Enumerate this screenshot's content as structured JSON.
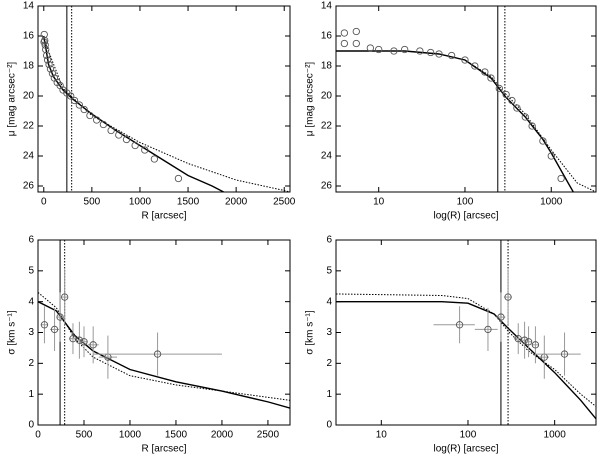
{
  "chart_data": [
    {
      "type": "scatter",
      "xlabel": "R [arcsec]",
      "ylabel": "μ [mag arcsec⁻²]",
      "xlim": [
        -60,
        2560
      ],
      "ylim": [
        26.4,
        14
      ],
      "xticks": [
        0,
        500,
        1000,
        1500,
        2000,
        2500
      ],
      "yticks": [
        14,
        16,
        18,
        20,
        22,
        24,
        26
      ],
      "log_x": false,
      "points": {
        "x": [
          3,
          5,
          10,
          15,
          20,
          30,
          40,
          55,
          70,
          90,
          110,
          140,
          170,
          200,
          240,
          280,
          320,
          370,
          420,
          480,
          550,
          620,
          700,
          780,
          860,
          950,
          1050,
          1150,
          1400
        ],
        "y": [
          16.4,
          15.9,
          16.3,
          16.6,
          16.9,
          17.3,
          17.6,
          17.9,
          18.2,
          18.5,
          18.8,
          19.1,
          19.3,
          19.6,
          19.8,
          20.0,
          20.3,
          20.6,
          20.9,
          21.3,
          21.6,
          21.9,
          22.3,
          22.6,
          22.9,
          23.3,
          23.6,
          24.2,
          25.5
        ]
      },
      "models": [
        {
          "style": "solid",
          "x": [
            0,
            50,
            100,
            200,
            300,
            500,
            750,
            1000,
            1250,
            1500,
            1750,
            1900
          ],
          "y": [
            16.0,
            17.9,
            18.7,
            19.6,
            20.2,
            21.2,
            22.3,
            23.3,
            24.3,
            25.3,
            26.0,
            26.5
          ]
        },
        {
          "style": "dotted",
          "x": [
            0,
            200,
            500,
            1000,
            1500,
            2000,
            2500,
            2560
          ],
          "y": [
            16.2,
            19.5,
            21.3,
            23.1,
            24.5,
            25.6,
            26.3,
            26.4
          ]
        }
      ],
      "vlines": [
        {
          "style": "solid",
          "x": 240
        },
        {
          "style": "dotted",
          "x": 290
        }
      ]
    },
    {
      "type": "scatter",
      "xlabel": "log(R) [arcsec]",
      "ylabel": "μ [mag arcsec⁻²]",
      "xlim": [
        3.2,
        3300
      ],
      "ylim": [
        26.4,
        14
      ],
      "xticks": [
        10,
        100,
        1000
      ],
      "yticks": [
        14,
        16,
        18,
        20,
        22,
        24,
        26
      ],
      "log_x": true,
      "points": {
        "x": [
          4,
          4,
          5.5,
          5.5,
          8,
          10,
          15,
          20,
          30,
          40,
          50,
          70,
          100,
          130,
          170,
          200,
          250,
          300,
          350,
          400,
          500,
          600,
          800,
          1000,
          1300
        ],
        "y": [
          16.5,
          15.8,
          15.7,
          16.5,
          16.8,
          16.9,
          17.0,
          16.9,
          17.0,
          17.1,
          17.2,
          17.3,
          17.6,
          18.0,
          18.4,
          18.8,
          19.5,
          19.9,
          20.3,
          20.8,
          21.4,
          22.0,
          23.0,
          24.0,
          25.5
        ]
      },
      "models": [
        {
          "style": "solid",
          "x": [
            3.2,
            20,
            50,
            100,
            200,
            300,
            500,
            800,
            1000,
            1500,
            1800
          ],
          "y": [
            17.0,
            17.0,
            17.2,
            17.6,
            18.8,
            20.1,
            21.4,
            22.9,
            23.8,
            25.6,
            26.4
          ]
        },
        {
          "style": "dotted",
          "x": [
            3.2,
            20,
            50,
            100,
            200,
            300,
            500,
            1000,
            2000,
            3300
          ],
          "y": [
            17.0,
            17.0,
            17.2,
            17.6,
            18.7,
            19.9,
            21.2,
            23.6,
            25.8,
            26.4
          ]
        }
      ],
      "vlines": [
        {
          "style": "solid",
          "x": 240
        },
        {
          "style": "dotted",
          "x": 290
        }
      ]
    },
    {
      "type": "scatter",
      "xlabel": "R [arcsec]",
      "ylabel": "σ [km s⁻¹]",
      "xlim": [
        0,
        2740
      ],
      "ylim": [
        0,
        6
      ],
      "xticks": [
        0,
        500,
        1000,
        1500,
        2000,
        2500
      ],
      "yticks": [
        0,
        1,
        2,
        3,
        4,
        5,
        6
      ],
      "log_x": false,
      "points": {
        "x": [
          70,
          180,
          240,
          290,
          380,
          450,
          500,
          600,
          760,
          1300
        ],
        "y": [
          3.25,
          3.1,
          3.5,
          4.15,
          2.8,
          2.75,
          2.7,
          2.6,
          2.2,
          2.3
        ],
        "xerr": [
          40,
          50,
          30,
          30,
          40,
          40,
          40,
          60,
          100,
          700
        ],
        "yerr": [
          0.6,
          0.7,
          0.8,
          0.9,
          0.5,
          0.6,
          0.5,
          0.6,
          0.7,
          0.7
        ]
      },
      "models": [
        {
          "style": "solid",
          "x": [
            0,
            200,
            400,
            600,
            1000,
            1500,
            2000,
            2500,
            2740
          ],
          "y": [
            4.0,
            3.7,
            2.9,
            2.4,
            1.8,
            1.4,
            1.1,
            0.75,
            0.55
          ]
        },
        {
          "style": "dotted",
          "x": [
            0,
            200,
            400,
            600,
            1000,
            1500,
            2000,
            2740
          ],
          "y": [
            4.3,
            3.8,
            2.8,
            2.2,
            1.6,
            1.3,
            1.1,
            0.8
          ]
        }
      ],
      "vlines": [
        {
          "style": "solid",
          "x": 240
        },
        {
          "style": "dotted",
          "x": 290
        }
      ]
    },
    {
      "type": "scatter",
      "xlabel": "log(R) [arcsec]",
      "ylabel": "σ [km s⁻¹]",
      "xlim": [
        3,
        3000
      ],
      "ylim": [
        0,
        6
      ],
      "xticks": [
        10,
        100,
        1000
      ],
      "yticks": [
        0,
        1,
        2,
        3,
        4,
        5,
        6
      ],
      "log_x": true,
      "points": {
        "x": [
          80,
          170,
          240,
          290,
          380,
          450,
          500,
          600,
          760,
          1300
        ],
        "y": [
          3.25,
          3.1,
          3.5,
          4.15,
          2.8,
          2.75,
          2.7,
          2.6,
          2.2,
          2.3
        ],
        "xerr": [
          40,
          50,
          30,
          30,
          40,
          40,
          40,
          60,
          100,
          700
        ],
        "yerr": [
          0.6,
          0.7,
          0.8,
          0.9,
          0.5,
          0.6,
          0.5,
          0.6,
          0.7,
          0.7
        ]
      },
      "models": [
        {
          "style": "solid",
          "x": [
            3,
            50,
            100,
            200,
            300,
            500,
            1000,
            2000,
            3000
          ],
          "y": [
            4.0,
            4.0,
            3.95,
            3.6,
            3.1,
            2.5,
            1.7,
            0.8,
            0.2
          ]
        },
        {
          "style": "dotted",
          "x": [
            3,
            50,
            100,
            200,
            300,
            500,
            1000,
            2000,
            3000
          ],
          "y": [
            4.25,
            4.2,
            4.1,
            3.6,
            3.0,
            2.4,
            1.8,
            1.0,
            0.6
          ]
        }
      ],
      "vlines": [
        {
          "style": "solid",
          "x": 240
        },
        {
          "style": "dotted",
          "x": 290
        }
      ]
    }
  ]
}
